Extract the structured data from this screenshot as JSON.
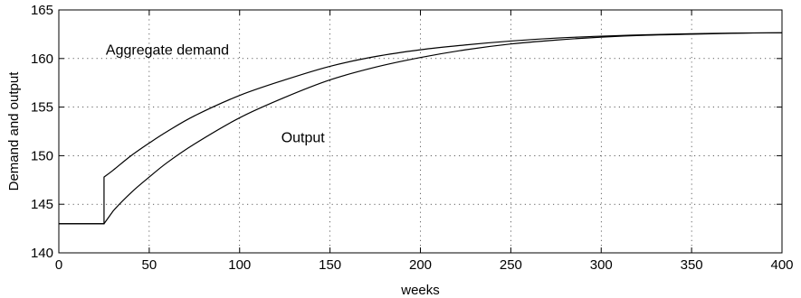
{
  "chart_data": {
    "type": "line",
    "title": "",
    "xlabel": "weeks",
    "ylabel": "Demand and output",
    "xlim": [
      0,
      400
    ],
    "ylim": [
      140,
      165
    ],
    "xticks": [
      0,
      50,
      100,
      150,
      200,
      250,
      300,
      350,
      400
    ],
    "yticks": [
      140,
      145,
      150,
      155,
      160,
      165
    ],
    "grid": true,
    "series": [
      {
        "name": "Aggregate demand",
        "x": [
          0,
          25,
          25,
          30,
          40,
          50,
          60,
          75,
          100,
          125,
          150,
          175,
          200,
          225,
          250,
          275,
          300,
          325,
          350,
          375,
          400
        ],
        "y": [
          143,
          143,
          147.8,
          148.5,
          150.0,
          151.3,
          152.5,
          154.1,
          156.2,
          157.8,
          159.2,
          160.2,
          160.9,
          161.4,
          161.8,
          162.1,
          162.3,
          162.45,
          162.55,
          162.62,
          162.65
        ]
      },
      {
        "name": "Output",
        "x": [
          0,
          25,
          30,
          40,
          50,
          60,
          75,
          100,
          125,
          150,
          175,
          200,
          225,
          250,
          275,
          300,
          325,
          350,
          375,
          400
        ],
        "y": [
          143,
          143,
          144.3,
          146.2,
          147.8,
          149.3,
          151.2,
          153.9,
          156.0,
          157.8,
          159.1,
          160.1,
          160.9,
          161.5,
          161.9,
          162.2,
          162.4,
          162.5,
          162.6,
          162.65
        ]
      }
    ],
    "annotations": [
      {
        "text": "Aggregate demand",
        "x": 26,
        "y": 160.4
      },
      {
        "text": "Output",
        "x": 123,
        "y": 151.4
      }
    ]
  }
}
